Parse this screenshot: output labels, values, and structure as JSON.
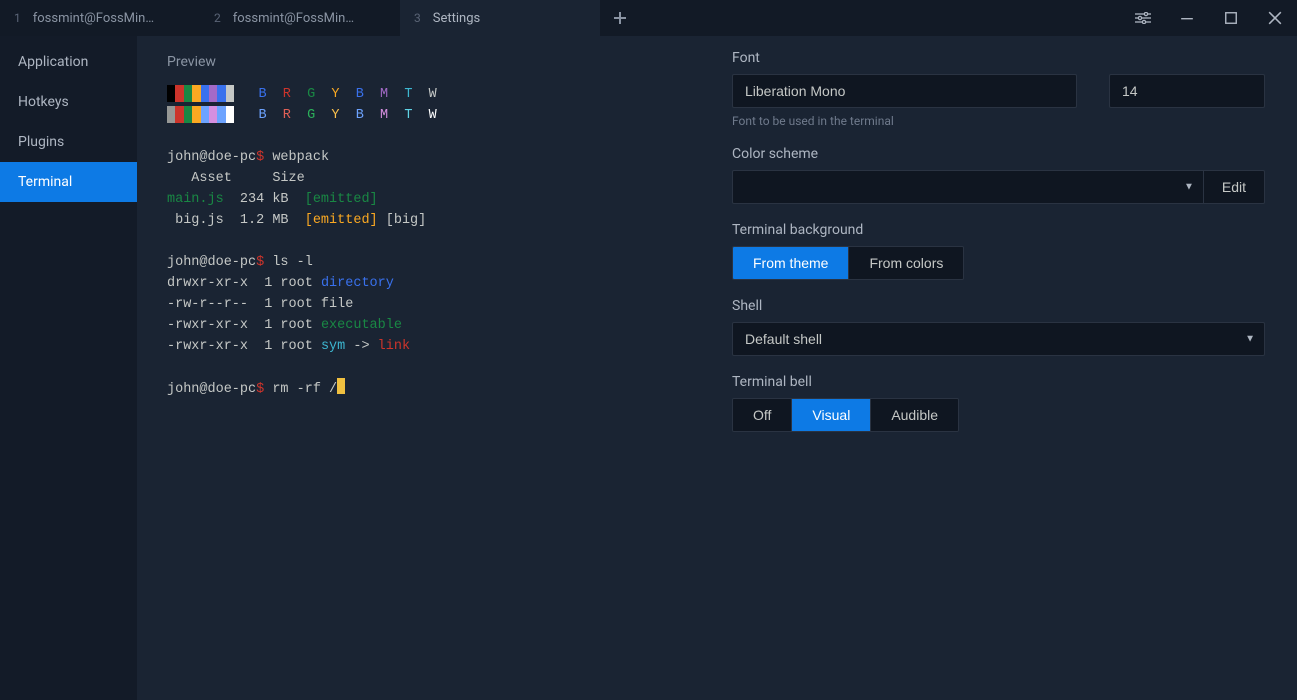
{
  "tabs": [
    {
      "num": "1",
      "label": "fossmint@FossMin…",
      "active": false
    },
    {
      "num": "2",
      "label": "fossmint@FossMin…",
      "active": false
    },
    {
      "num": "3",
      "label": "Settings",
      "active": true
    }
  ],
  "sidebar": {
    "items": [
      {
        "label": "Application",
        "active": false
      },
      {
        "label": "Hotkeys",
        "active": false
      },
      {
        "label": "Plugins",
        "active": false
      },
      {
        "label": "Terminal",
        "active": true
      }
    ]
  },
  "preview": {
    "label": "Preview",
    "ansi_normal": [
      "#000000",
      "#cc342b",
      "#198844",
      "#fba922",
      "#3971ed",
      "#a36ac7",
      "#3971ed",
      "#c5c8c6"
    ],
    "ansi_bright": [
      "#969896",
      "#cc342b",
      "#198844",
      "#fba922",
      "#6da3ff",
      "#d68fe0",
      "#6da3ff",
      "#ffffff"
    ],
    "letters": [
      {
        "t": "B",
        "c": "#3971ed"
      },
      {
        "t": "R",
        "c": "#cc342b"
      },
      {
        "t": "G",
        "c": "#198844"
      },
      {
        "t": "Y",
        "c": "#fba922"
      },
      {
        "t": "B",
        "c": "#3971ed"
      },
      {
        "t": "M",
        "c": "#a36ac7"
      },
      {
        "t": "T",
        "c": "#3db7d1"
      },
      {
        "t": "W",
        "c": "#c5c8c6"
      }
    ],
    "letters_bright": [
      {
        "t": "B",
        "c": "#6da3ff"
      },
      {
        "t": "R",
        "c": "#e06056"
      },
      {
        "t": "G",
        "c": "#2bb05a"
      },
      {
        "t": "Y",
        "c": "#fcc14d"
      },
      {
        "t": "B",
        "c": "#6da3ff"
      },
      {
        "t": "M",
        "c": "#d68fe0"
      },
      {
        "t": "T",
        "c": "#5fd3e6"
      },
      {
        "t": "W",
        "c": "#ffffff"
      }
    ],
    "lines": {
      "prompt_user": "john@doe-pc",
      "prompt_symbol": "$",
      "prompt_symbol_color": "#cc342b",
      "cmd_webpack": " webpack",
      "header": "   Asset     Size",
      "row1_a": "main.js",
      "row1_a_color": "#198844",
      "row1_b": "  234 kB  ",
      "row1_c": "[emitted]",
      "row1_c_color": "#198844",
      "row2_a": " big.js  1.2 MB  ",
      "row2_b": "[emitted]",
      "row2_b_color": "#fba922",
      "row2_c": " [big]",
      "cmd_ls": " ls -l",
      "ls1_a": "drwxr-xr-x  1 root ",
      "ls1_b": "directory",
      "ls1_b_color": "#3971ed",
      "ls2": "-rw-r--r--  1 root file",
      "ls3_a": "-rwxr-xr-x  1 root ",
      "ls3_b": "executable",
      "ls3_b_color": "#198844",
      "ls4_a": "-rwxr-xr-x  1 root ",
      "ls4_b": "sym",
      "ls4_b_color": "#3db7d1",
      "ls4_c": " -> ",
      "ls4_d": "link",
      "ls4_d_color": "#cc342b",
      "cmd_rm": " rm -rf /"
    }
  },
  "settings": {
    "font_label": "Font",
    "font_name": "Liberation Mono",
    "font_size": "14",
    "font_help": "Font to be used in the terminal",
    "scheme_label": "Color scheme",
    "scheme_value": "",
    "edit_label": "Edit",
    "bg_label": "Terminal background",
    "bg_options": [
      "From theme",
      "From colors"
    ],
    "bg_active": 0,
    "shell_label": "Shell",
    "shell_value": "Default shell",
    "bell_label": "Terminal bell",
    "bell_options": [
      "Off",
      "Visual",
      "Audible"
    ],
    "bell_active": 1
  }
}
